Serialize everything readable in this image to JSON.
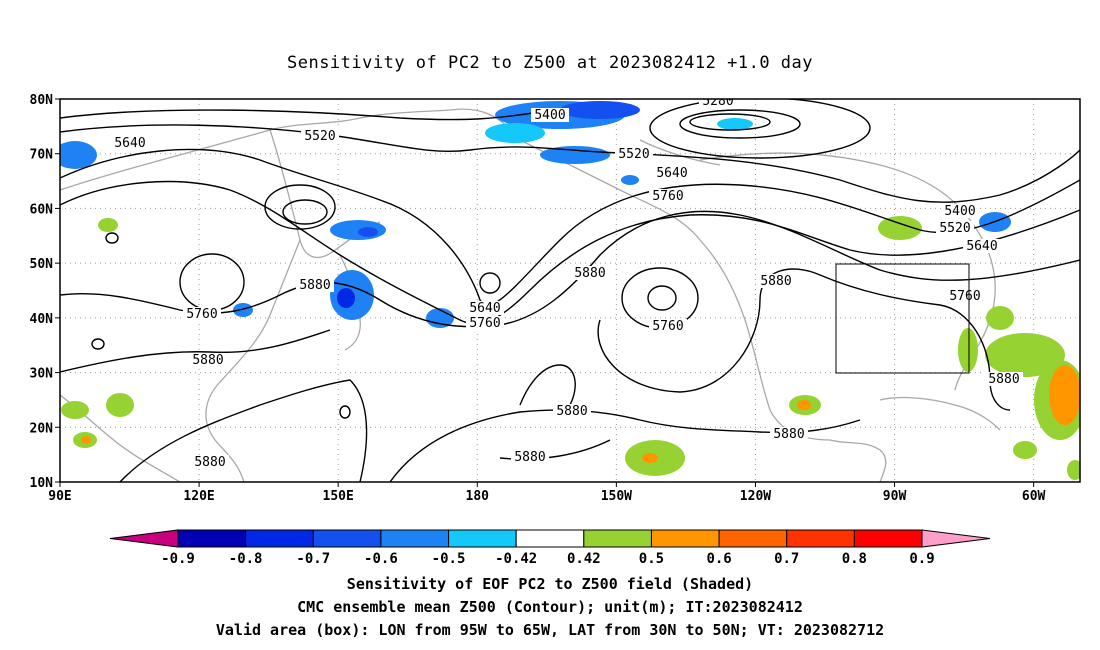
{
  "title": "Sensitivity of PC2 to Z500 at 2023082412 +1.0 day",
  "map": {
    "lon_range": [
      "90E",
      "50W"
    ],
    "lat_range": [
      "10N",
      "80N"
    ],
    "x_ticks": [
      "90E",
      "120E",
      "150E",
      "180",
      "150W",
      "120W",
      "90W",
      "60W"
    ],
    "y_ticks": [
      "80N",
      "70N",
      "60N",
      "50N",
      "40N",
      "30N",
      "20N",
      "10N"
    ],
    "grid": "dotted",
    "contour_labels": [
      "5280",
      "5400",
      "5400",
      "5520",
      "5520",
      "5520",
      "5640",
      "5640",
      "5640",
      "5640",
      "5760",
      "5760",
      "5760",
      "5760",
      "5760",
      "5880",
      "5880",
      "5880",
      "5880",
      "5880",
      "5880",
      "5880",
      "5880",
      "5880"
    ],
    "box": {
      "lon_from": "95W",
      "lon_to": "65W",
      "lat_from": "30N",
      "lat_to": "50N"
    },
    "colors": {
      "coast": "#a8a8a8",
      "contour": "#000000",
      "grid": "#9a9a9a"
    }
  },
  "colorbar": {
    "labels": [
      "-0.9",
      "-0.8",
      "-0.7",
      "-0.6",
      "-0.5",
      "-0.42",
      "0.42",
      "0.5",
      "0.6",
      "0.7",
      "0.8",
      "0.9"
    ],
    "colors": [
      "#c8007e",
      "#0000b4",
      "#0028e6",
      "#1450f0",
      "#1e82f5",
      "#14c8fa",
      "#ffffff",
      "#96d232",
      "#ff9600",
      "#ff6400",
      "#ff3200",
      "#ff0000",
      "#ff9ec8"
    ]
  },
  "footer": [
    "Sensitivity of EOF PC2 to Z500 field (Shaded)",
    "CMC ensemble mean Z500 (Contour); unit(m); IT:2023082412",
    "Valid area (box): LON from 95W to 65W, LAT from 30N to 50N; VT: 2023082712"
  ]
}
